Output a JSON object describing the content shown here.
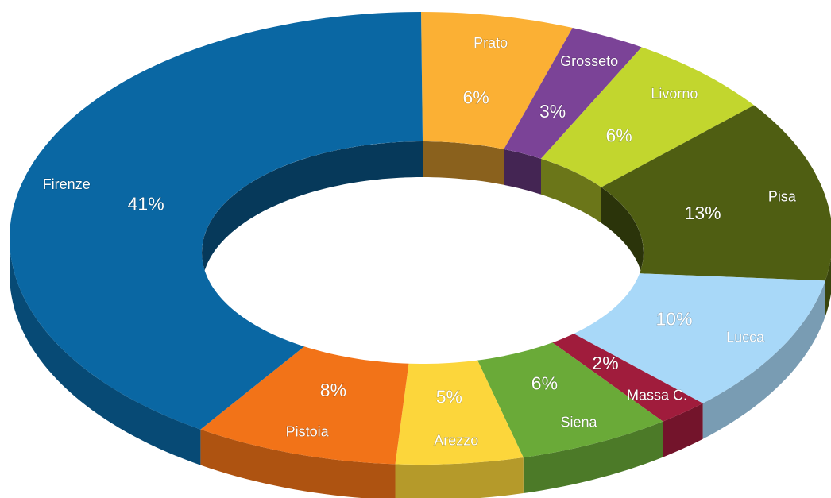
{
  "chart_data": {
    "type": "donut",
    "categories": [
      "Prato",
      "Grosseto",
      "Livorno",
      "Pisa",
      "Lucca",
      "Massa C.",
      "Siena",
      "Arezzo",
      "Pistoia",
      "Firenze"
    ],
    "values": [
      6,
      3,
      6,
      13,
      10,
      2,
      6,
      5,
      8,
      41
    ],
    "value_labels": [
      "6%",
      "3%",
      "6%",
      "13%",
      "10%",
      "2%",
      "6%",
      "5%",
      "8%",
      "41%"
    ],
    "colors": [
      "#fbb034",
      "#7b4397",
      "#c2d62e",
      "#4f5e12",
      "#a8d8f8",
      "#a01c3c",
      "#6aaa38",
      "#fcd63b",
      "#f27318",
      "#0a67a3"
    ]
  }
}
